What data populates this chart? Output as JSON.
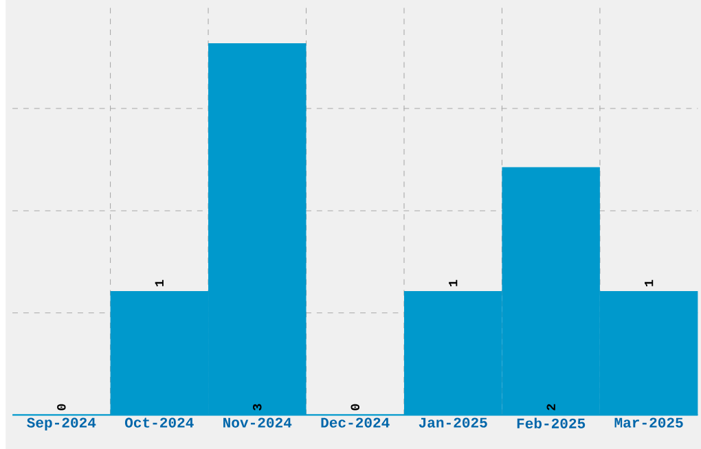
{
  "chart_data": {
    "type": "bar",
    "categories": [
      "Sep-2024",
      "Oct-2024",
      "Nov-2024",
      "Dec-2024",
      "Jan-2025",
      "Feb-2025",
      "Mar-2025"
    ],
    "values": [
      0,
      1,
      3,
      0,
      1,
      2,
      1
    ],
    "color": "#0099cc",
    "data_labels": true,
    "grid": true,
    "tick_labels": "x",
    "ylim": [
      0,
      3.29
    ],
    "yticks": [
      {
        "value": 0.824,
        "label": null
      },
      {
        "value": 1.648,
        "label": null
      },
      {
        "value": 2.473,
        "label": null
      }
    ]
  }
}
